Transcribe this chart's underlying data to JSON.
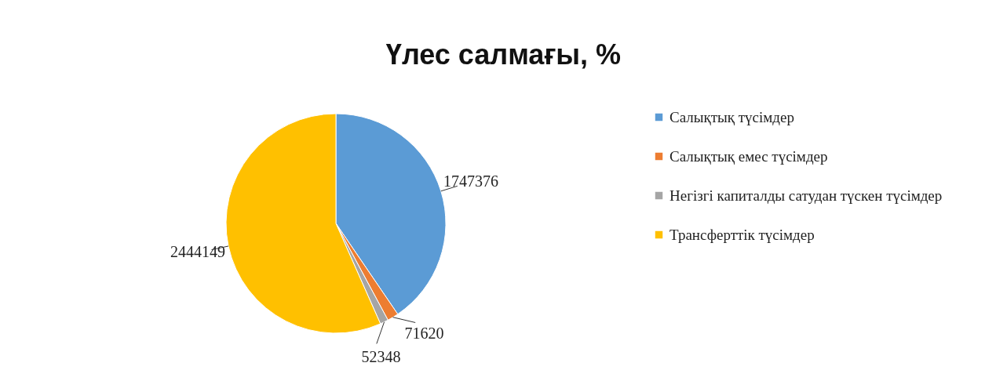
{
  "chart_data": {
    "type": "pie",
    "title": "Үлес салмағы, %",
    "categories": [
      "Салықтық түсімдер",
      "Салықтық емес түсімдер",
      "Негізгі капиталды сатудан түскен түсімдер",
      "Трансферттік түсімдер"
    ],
    "values": [
      1747376,
      71620,
      52348,
      2444149
    ],
    "colors": [
      "#5b9bd5",
      "#ed7d31",
      "#a5a5a5",
      "#ffc000"
    ],
    "data_labels": true,
    "legend": "right"
  }
}
